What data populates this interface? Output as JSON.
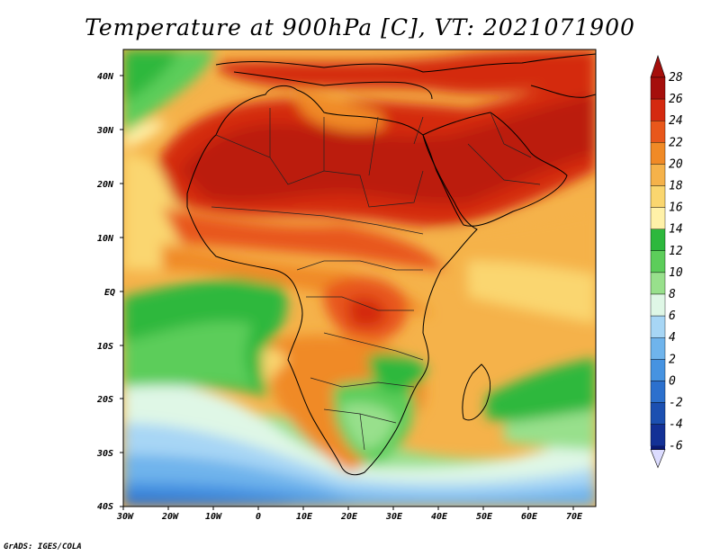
{
  "title": "Temperature at 900hPa [C], VT: 2021071900",
  "credit": "GrADS: IGES/COLA",
  "map": {
    "lon_labels": [
      "30W",
      "20W",
      "10W",
      "0",
      "10E",
      "20E",
      "30E",
      "40E",
      "50E",
      "60E",
      "70E"
    ],
    "lat_labels": [
      "40N",
      "30N",
      "20N",
      "10N",
      "EQ",
      "10S",
      "20S",
      "30S",
      "40S"
    ]
  },
  "colorbar": {
    "labels": [
      "28",
      "26",
      "24",
      "22",
      "20",
      "18",
      "16",
      "14",
      "12",
      "10",
      "8",
      "6",
      "4",
      "2",
      "0",
      "-2",
      "-4",
      "-6"
    ],
    "colors": [
      "#a50f0c",
      "#d42a10",
      "#e8571b",
      "#f08a26",
      "#f5b24a",
      "#fad66f",
      "#fff1a8",
      "#2db83d",
      "#5ccd5a",
      "#98e08c",
      "#dff7e6",
      "#a7d6f5",
      "#6fb4ec",
      "#4693e1",
      "#2c70cd",
      "#1c50b1",
      "#133196",
      "#0a1a73"
    ]
  }
}
